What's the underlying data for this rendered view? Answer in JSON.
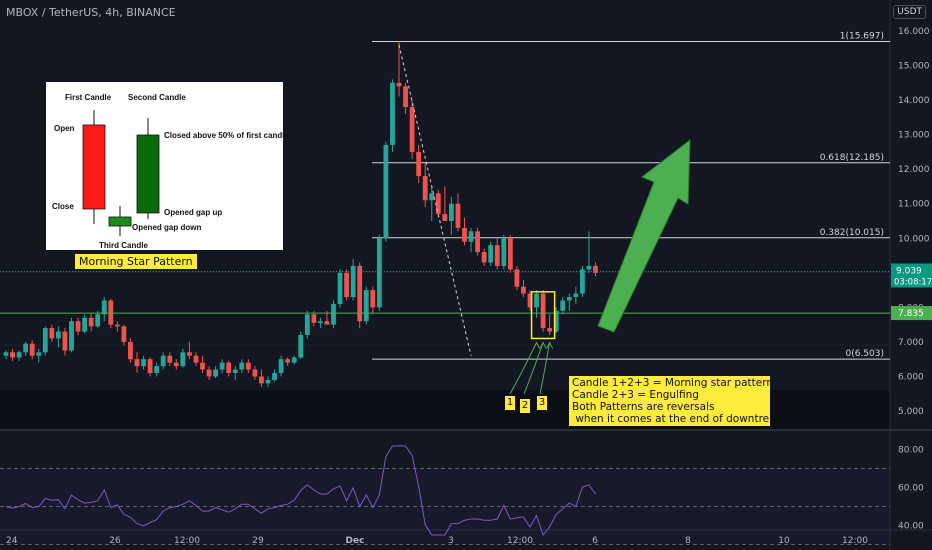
{
  "header": {
    "symbol": "MBOX / TetherUS, 4h, BINANCE",
    "currency": "USDT"
  },
  "price_axis": {
    "ticks": [
      "16.000",
      "15.000",
      "14.000",
      "13.000",
      "12.000",
      "11.000",
      "10.000",
      "9.000",
      "8.000",
      "7.000",
      "6.000",
      "5.000"
    ],
    "current_price": "9.039",
    "countdown": "03:08:17",
    "green_level_label": "7.835",
    "current_color": "#089981",
    "green_level_color": "#4caf50"
  },
  "time_axis": {
    "ticks": [
      "24",
      "26",
      "12:00",
      "29",
      "Dec",
      "3",
      "12:00",
      "6",
      "8",
      "10",
      "12:00"
    ]
  },
  "fibonacci": [
    {
      "label": "1(15.697)",
      "value": 15.697
    },
    {
      "label": "0.618(12.185)",
      "value": 12.185
    },
    {
      "label": "0.382(10.015)",
      "value": 10.015
    },
    {
      "label": "0(6.503)",
      "value": 6.503
    }
  ],
  "inset": {
    "title": "Morning Star Pattern",
    "labels": {
      "first_candle": "First Candle",
      "second_candle": "Second Candle",
      "open": "Open",
      "close": "Close",
      "third_candle": "Third Candle",
      "closed_above": "Closed above 50% of first candle",
      "opened_gap_up": "Opened gap up",
      "opened_gap_down": "Opened gap down"
    }
  },
  "annotation": {
    "lines": [
      "Candle 1+2+3 = Morning star pattern",
      "Candle 2+3 = Engulfing",
      "Both Patterns are reversals",
      " when it comes at the end of downtrend"
    ],
    "candle_numbers": [
      "1",
      "2",
      "3"
    ]
  },
  "rsi": {
    "ticks": [
      "80.00",
      "60.00",
      "40.00"
    ]
  },
  "colors": {
    "up": "#26a69a",
    "down": "#ef5350",
    "background": "#131722",
    "arrow": "#4caf50",
    "annotation": "#ffeb3b",
    "rsi_line": "#7e57c2"
  },
  "chart_data": {
    "type": "candlestick",
    "interval": "4h",
    "ylim": [
      4.6,
      16.5
    ],
    "description_levels": {
      "support_line": 7.835,
      "last": 9.039
    },
    "candles": [
      [
        6.6,
        6.75,
        6.5,
        6.7
      ],
      [
        6.7,
        6.8,
        6.45,
        6.55
      ],
      [
        6.55,
        6.75,
        6.45,
        6.7
      ],
      [
        6.7,
        7,
        6.6,
        6.95
      ],
      [
        6.95,
        7.05,
        6.5,
        6.6
      ],
      [
        6.6,
        6.8,
        6.4,
        6.7
      ],
      [
        6.7,
        7.45,
        6.6,
        7.4
      ],
      [
        7.4,
        7.5,
        7,
        7.1
      ],
      [
        7.1,
        7.45,
        6.85,
        7.3
      ],
      [
        7.3,
        7.4,
        6.6,
        6.75
      ],
      [
        6.75,
        7.7,
        6.7,
        7.6
      ],
      [
        7.6,
        7.7,
        7.2,
        7.3
      ],
      [
        7.3,
        7.8,
        7.25,
        7.7
      ],
      [
        7.7,
        7.85,
        7.3,
        7.45
      ],
      [
        7.45,
        7.9,
        7.4,
        7.8
      ],
      [
        7.8,
        8.3,
        7.6,
        8.2
      ],
      [
        8.2,
        8.25,
        7.4,
        7.5
      ],
      [
        7.5,
        7.6,
        7.3,
        7.45
      ],
      [
        7.45,
        7.5,
        6.9,
        7.0
      ],
      [
        7.0,
        7.1,
        6.4,
        6.5
      ],
      [
        6.5,
        6.7,
        6.1,
        6.3
      ],
      [
        6.3,
        6.6,
        6.2,
        6.5
      ],
      [
        6.5,
        6.55,
        6.0,
        6.1
      ],
      [
        6.1,
        6.4,
        6.0,
        6.3
      ],
      [
        6.3,
        6.7,
        6.2,
        6.6
      ],
      [
        6.6,
        6.7,
        6.3,
        6.4
      ],
      [
        6.4,
        6.5,
        6.2,
        6.3
      ],
      [
        6.3,
        6.8,
        6.25,
        6.7
      ],
      [
        6.7,
        7.0,
        6.5,
        6.6
      ],
      [
        6.6,
        6.7,
        6.3,
        6.4
      ],
      [
        6.4,
        6.6,
        6.1,
        6.2
      ],
      [
        6.2,
        6.3,
        5.9,
        6.0
      ],
      [
        6.0,
        6.3,
        5.95,
        6.2
      ],
      [
        6.2,
        6.5,
        6.1,
        6.4
      ],
      [
        6.4,
        6.45,
        6.0,
        6.1
      ],
      [
        6.1,
        6.3,
        5.9,
        6.2
      ],
      [
        6.2,
        6.5,
        6.1,
        6.4
      ],
      [
        6.4,
        6.5,
        6.1,
        6.2
      ],
      [
        6.2,
        6.3,
        5.9,
        6.0
      ],
      [
        6.0,
        6.2,
        5.7,
        5.8
      ],
      [
        5.8,
        6.0,
        5.7,
        5.9
      ],
      [
        5.9,
        6.2,
        5.85,
        6.1
      ],
      [
        6.1,
        6.6,
        6.0,
        6.5
      ],
      [
        6.5,
        6.55,
        6.3,
        6.4
      ],
      [
        6.4,
        6.6,
        6.35,
        6.55
      ],
      [
        6.55,
        7.3,
        6.5,
        7.2
      ],
      [
        7.2,
        7.9,
        7.1,
        7.8
      ],
      [
        7.8,
        7.9,
        7.45,
        7.55
      ],
      [
        7.55,
        7.7,
        7.4,
        7.6
      ],
      [
        7.6,
        7.9,
        7.5,
        7.5
      ],
      [
        7.5,
        8.2,
        7.4,
        8.1
      ],
      [
        8.1,
        9.1,
        8.0,
        9.0
      ],
      [
        9.0,
        9.1,
        8.2,
        8.3
      ],
      [
        8.3,
        9.4,
        8.2,
        9.2
      ],
      [
        9.2,
        9.3,
        7.4,
        7.6
      ],
      [
        7.6,
        8.6,
        7.5,
        8.5
      ],
      [
        8.5,
        8.6,
        7.8,
        8.0
      ],
      [
        8.0,
        10.1,
        7.9,
        10.0
      ],
      [
        10.0,
        12.8,
        9.9,
        12.7
      ],
      [
        12.7,
        14.6,
        12.5,
        14.5
      ],
      [
        14.5,
        15.7,
        14.1,
        14.4
      ],
      [
        14.4,
        14.5,
        13.6,
        13.8
      ],
      [
        13.8,
        14.0,
        12.3,
        12.5
      ],
      [
        12.5,
        12.7,
        11.6,
        11.8
      ],
      [
        11.8,
        12.2,
        10.9,
        11.1
      ],
      [
        11.1,
        11.5,
        10.5,
        11.3
      ],
      [
        11.3,
        11.4,
        10.6,
        10.7
      ],
      [
        10.7,
        11.5,
        10.5,
        10.5
      ],
      [
        10.5,
        11.2,
        10.1,
        11.0
      ],
      [
        11.0,
        11.3,
        10.2,
        10.3
      ],
      [
        10.3,
        10.6,
        9.8,
        9.9
      ],
      [
        9.9,
        10.3,
        9.6,
        10.2
      ],
      [
        10.2,
        10.3,
        9.5,
        9.6
      ],
      [
        9.6,
        9.7,
        9.2,
        9.3
      ],
      [
        9.3,
        9.9,
        9.2,
        9.8
      ],
      [
        9.8,
        10.0,
        9.1,
        9.2
      ],
      [
        9.2,
        10.1,
        9.1,
        10.0
      ],
      [
        10.0,
        10.1,
        9.0,
        9.1
      ],
      [
        9.1,
        9.2,
        8.5,
        8.6
      ],
      [
        8.6,
        8.8,
        8.3,
        8.4
      ],
      [
        8.4,
        8.5,
        7.9,
        8.0
      ],
      [
        8.0,
        8.5,
        7.7,
        8.4
      ],
      [
        8.4,
        8.5,
        7.3,
        7.4
      ],
      [
        7.4,
        7.8,
        7.2,
        7.3
      ],
      [
        7.3,
        8.0,
        7.25,
        7.9
      ],
      [
        7.9,
        8.3,
        7.8,
        8.2
      ],
      [
        8.2,
        8.4,
        7.9,
        8.3
      ],
      [
        8.3,
        8.6,
        8.1,
        8.4
      ],
      [
        8.4,
        9.2,
        8.3,
        9.1
      ],
      [
        9.1,
        10.2,
        9.0,
        9.2
      ],
      [
        9.2,
        9.3,
        8.9,
        9.0
      ]
    ]
  }
}
